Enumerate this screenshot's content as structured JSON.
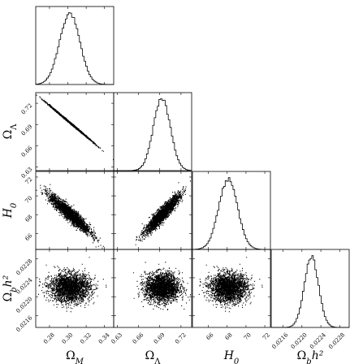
{
  "chart_data": {
    "type": "scatter",
    "subtype": "corner-plot",
    "parameters": [
      {
        "key": "om",
        "symbol": "Ω",
        "subscript": "M",
        "superscript": "",
        "range": [
          0.265,
          0.35
        ],
        "ticks": [
          0.28,
          0.3,
          0.32,
          0.34
        ],
        "tick_labels": [
          "0.28",
          "0.30",
          "0.32",
          "0.34"
        ],
        "marginal_mean": 0.302,
        "marginal_sd": 0.011
      },
      {
        "key": "ol",
        "symbol": "Ω",
        "subscript": "Λ",
        "superscript": "",
        "range": [
          0.625,
          0.735
        ],
        "ticks": [
          0.63,
          0.66,
          0.69,
          0.72
        ],
        "tick_labels": [
          "0.63",
          "0.66",
          "0.69",
          "0.72"
        ],
        "marginal_mean": 0.693,
        "marginal_sd": 0.012
      },
      {
        "key": "h0",
        "symbol": "H",
        "subscript": "0",
        "superscript": "",
        "range": [
          64.3,
          72.6
        ],
        "ticks": [
          66,
          68,
          70,
          72
        ],
        "tick_labels": [
          "66",
          "68",
          "70",
          "72"
        ],
        "marginal_mean": 68.1,
        "marginal_sd": 1.0
      },
      {
        "key": "obh2",
        "symbol": "Ω",
        "subscript": "b",
        "superscript": "h²",
        "range": [
          0.02135,
          0.023
        ],
        "ticks": [
          0.0216,
          0.022,
          0.0224,
          0.0228
        ],
        "tick_labels": [
          "0.0216",
          "0.0220",
          "0.0224",
          "0.0228"
        ],
        "marginal_mean": 0.0222,
        "marginal_sd": 0.00015
      }
    ],
    "correlations": [
      {
        "pair": [
          "om",
          "ol"
        ],
        "r": -0.999
      },
      {
        "pair": [
          "om",
          "h0"
        ],
        "r": -0.93
      },
      {
        "pair": [
          "ol",
          "h0"
        ],
        "r": 0.93
      },
      {
        "pair": [
          "om",
          "obh2"
        ],
        "r": 0.0
      },
      {
        "pair": [
          "ol",
          "obh2"
        ],
        "r": 0.0
      },
      {
        "pair": [
          "h0",
          "obh2"
        ],
        "r": 0.0
      }
    ],
    "marginal_style": "step-histogram",
    "offdiagonal_style": "scatter",
    "color": "#000000",
    "grid": false,
    "legend": "none"
  }
}
